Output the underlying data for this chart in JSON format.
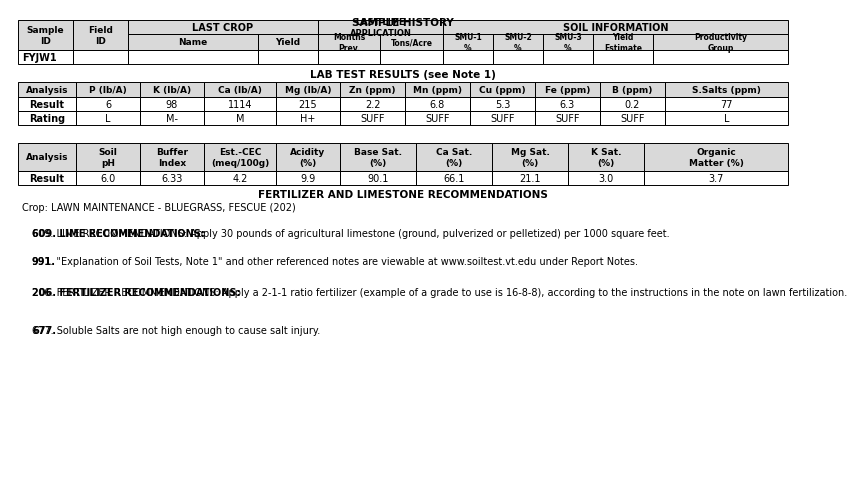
{
  "title1": "SAMPLE HISTORY",
  "title2": "LAB TEST RESULTS (see Note 1)",
  "title3": "FERTILIZER AND LIMESTONE RECOMMENDATIONS",
  "crop_label": "Crop: LAWN MAINTENANCE - BLUEGRASS, FESCUE (202)",
  "notes": [
    {
      "num": "609.",
      "bold_part": "609. LIME RECOMMENDATIONS:",
      "rest": " Apply 30 pounds of agricultural limestone (ground, pulverized or pelletized) per 1000 square feet."
    },
    {
      "num": "991.",
      "bold_part": "991.",
      "rest": " \"Explanation of Soil Tests, Note 1\" and other referenced notes are viewable at www.soiltest.vt.edu under Report Notes."
    },
    {
      "num": "206.",
      "bold_part": "206. FERTILIZER RECOMMENDATIONS:",
      "rest": " Apply a 2-1-1 ratio fertilizer (example of a grade to use is 16-8-8), according to the instructions in the note on lawn fertilization."
    },
    {
      "num": "677.",
      "bold_part": "677.",
      "rest": " Soluble Salts are not high enough to cause salt injury."
    }
  ],
  "sample_id": "FYJW1",
  "lab_test1_headers": [
    "Analysis",
    "P (lb/A)",
    "K (lb/A)",
    "Ca (lb/A)",
    "Mg (lb/A)",
    "Zn (ppm)",
    "Mn (ppm)",
    "Cu (ppm)",
    "Fe (ppm)",
    "B (ppm)",
    "S.Salts (ppm)"
  ],
  "lab_test1_result": [
    "Result",
    "6",
    "98",
    "1114",
    "215",
    "2.2",
    "6.8",
    "5.3",
    "6.3",
    "0.2",
    "77"
  ],
  "lab_test1_rating": [
    "Rating",
    "L",
    "M-",
    "M",
    "H+",
    "SUFF",
    "SUFF",
    "SUFF",
    "SUFF",
    "SUFF",
    "L"
  ],
  "lab_test2_headers": [
    "Analysis",
    "Soil\npH",
    "Buffer\nIndex",
    "Est.-CEC\n(meq/100g)",
    "Acidity\n(%)",
    "Base Sat.\n(%)",
    "Ca Sat.\n(%)",
    "Mg Sat.\n(%)",
    "K Sat.\n(%)",
    "Organic\nMatter (%)"
  ],
  "lab_test2_result": [
    "Result",
    "6.0",
    "6.33",
    "4.2",
    "9.9",
    "90.1",
    "66.1",
    "21.1",
    "3.0",
    "3.7"
  ],
  "bg_color": "#ffffff",
  "light_gray": "#d9d9d9",
  "border_color": "#000000"
}
